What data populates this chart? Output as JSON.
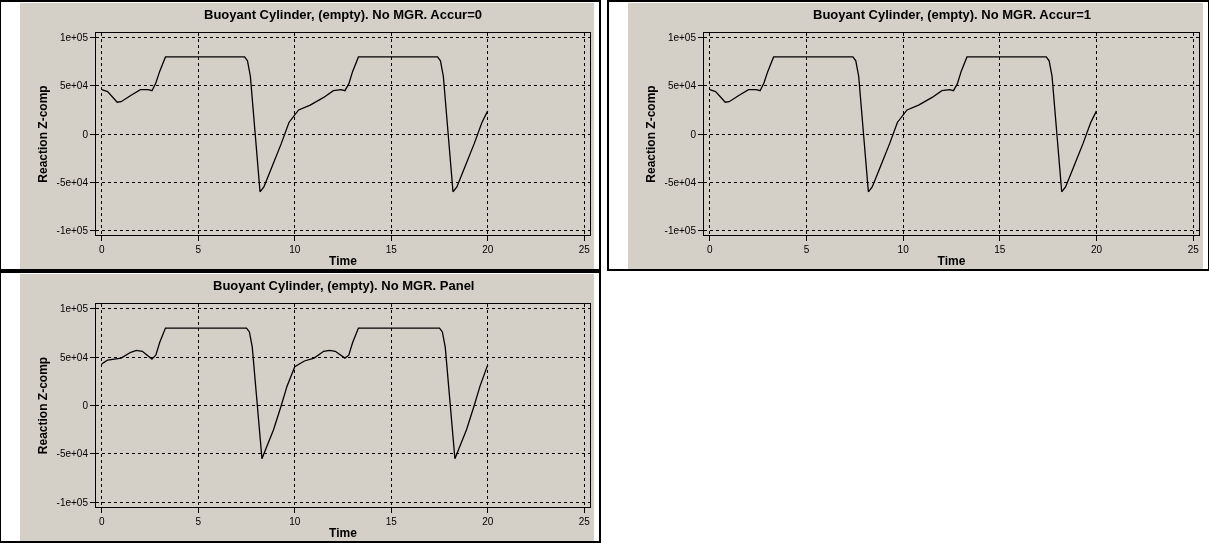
{
  "chart_data": [
    {
      "type": "line",
      "title": "Buoyant Cylinder, (empty). No MGR. Accur=0",
      "xlabel": "Time",
      "ylabel": "Reaction Z-comp",
      "xlim": [
        -0.3,
        25.3
      ],
      "ylim": [
        -105000,
        105000
      ],
      "xticks": [
        0,
        5,
        10,
        15,
        20,
        25
      ],
      "yticks": [
        {
          "value": 100000,
          "label": "1e+05"
        },
        {
          "value": 50000,
          "label": "5e+04"
        },
        0,
        {
          "value": -50000,
          "label": "-5e+04"
        },
        {
          "value": -100000,
          "label": "-1e+05"
        }
      ],
      "grid": true,
      "line_style": "solid",
      "series": [
        {
          "color": "#000000",
          "x": [
            0,
            0.3,
            0.8,
            1.0,
            1.5,
            2.0,
            2.4,
            2.6,
            2.8,
            3.0,
            3.3,
            7.4,
            7.55,
            7.7,
            8.2,
            8.4,
            8.8,
            9.3,
            9.7,
            10.2,
            10.8,
            11.5,
            12.0,
            12.4,
            12.6,
            12.8,
            13.0,
            13.3,
            17.4,
            17.55,
            17.7,
            18.2,
            18.4,
            18.8,
            19.3,
            19.7,
            20
          ],
          "values": [
            46000,
            44000,
            33000,
            33500,
            40000,
            46000,
            46000,
            45000,
            53000,
            65000,
            80000,
            80000,
            76000,
            60000,
            -60000,
            -55000,
            -35000,
            -10000,
            12000,
            25000,
            30000,
            38000,
            45000,
            46000,
            45000,
            52000,
            65000,
            80000,
            80000,
            76000,
            60000,
            -60000,
            -55000,
            -35000,
            -10000,
            12000,
            24000
          ]
        }
      ]
    },
    {
      "type": "line",
      "title": "Buoyant Cylinder, (empty). No MGR. Accur=1",
      "xlabel": "Time",
      "ylabel": "Reaction Z-comp",
      "xlim": [
        -0.3,
        25.3
      ],
      "ylim": [
        -105000,
        105000
      ],
      "xticks": [
        0,
        5,
        10,
        15,
        20,
        25
      ],
      "yticks": [
        {
          "value": 100000,
          "label": "1e+05"
        },
        {
          "value": 50000,
          "label": "5e+04"
        },
        0,
        {
          "value": -50000,
          "label": "-5e+04"
        },
        {
          "value": -100000,
          "label": "-1e+05"
        }
      ],
      "grid": true,
      "line_style": "solid",
      "series": [
        {
          "color": "#000000",
          "x": [
            0,
            0.3,
            0.8,
            1.0,
            1.5,
            2.0,
            2.4,
            2.6,
            2.8,
            3.0,
            3.3,
            7.4,
            7.55,
            7.7,
            8.2,
            8.4,
            8.8,
            9.3,
            9.7,
            10.2,
            10.8,
            11.5,
            12.0,
            12.4,
            12.6,
            12.8,
            13.0,
            13.3,
            17.4,
            17.55,
            17.7,
            18.2,
            18.4,
            18.8,
            19.3,
            19.7,
            20
          ],
          "values": [
            46000,
            44000,
            33000,
            33500,
            40000,
            46000,
            46000,
            45000,
            53000,
            65000,
            80000,
            80000,
            76000,
            60000,
            -60000,
            -55000,
            -35000,
            -10000,
            12000,
            25000,
            30000,
            38000,
            45000,
            46000,
            45000,
            52000,
            65000,
            80000,
            80000,
            76000,
            60000,
            -60000,
            -55000,
            -35000,
            -10000,
            12000,
            24000
          ]
        }
      ]
    },
    {
      "type": "line",
      "title": "Buoyant Cylinder, (empty). No MGR. Panel",
      "xlabel": "Time",
      "ylabel": "Reaction Z-comp",
      "xlim": [
        -0.3,
        25.3
      ],
      "ylim": [
        -105000,
        105000
      ],
      "xticks": [
        0,
        5,
        10,
        15,
        20,
        25
      ],
      "yticks": [
        {
          "value": 100000,
          "label": "1e+05"
        },
        {
          "value": 50000,
          "label": "5e+04"
        },
        0,
        {
          "value": -50000,
          "label": "-5e+04"
        },
        {
          "value": -100000,
          "label": "-1e+05"
        }
      ],
      "grid": true,
      "line_style": "solid",
      "series": [
        {
          "color": "#000000",
          "x": [
            0,
            0.3,
            1.0,
            1.5,
            1.8,
            2.1,
            2.6,
            2.8,
            3.0,
            3.3,
            7.5,
            7.65,
            7.8,
            8.3,
            8.5,
            8.9,
            9.3,
            9.6,
            10.0,
            10.5,
            11.0,
            11.5,
            11.8,
            12.1,
            12.6,
            12.8,
            13.0,
            13.3,
            17.5,
            17.65,
            17.8,
            18.3,
            18.5,
            18.9,
            19.3,
            19.6,
            20
          ],
          "values": [
            43000,
            47000,
            49000,
            55000,
            57000,
            56000,
            48000,
            52000,
            65000,
            80000,
            80000,
            76000,
            60000,
            -55000,
            -45000,
            -25000,
            0,
            20000,
            40000,
            46000,
            49000,
            56000,
            57000,
            56000,
            49000,
            52000,
            65000,
            80000,
            80000,
            76000,
            60000,
            -55000,
            -45000,
            -25000,
            0,
            20000,
            42000
          ]
        }
      ]
    }
  ]
}
